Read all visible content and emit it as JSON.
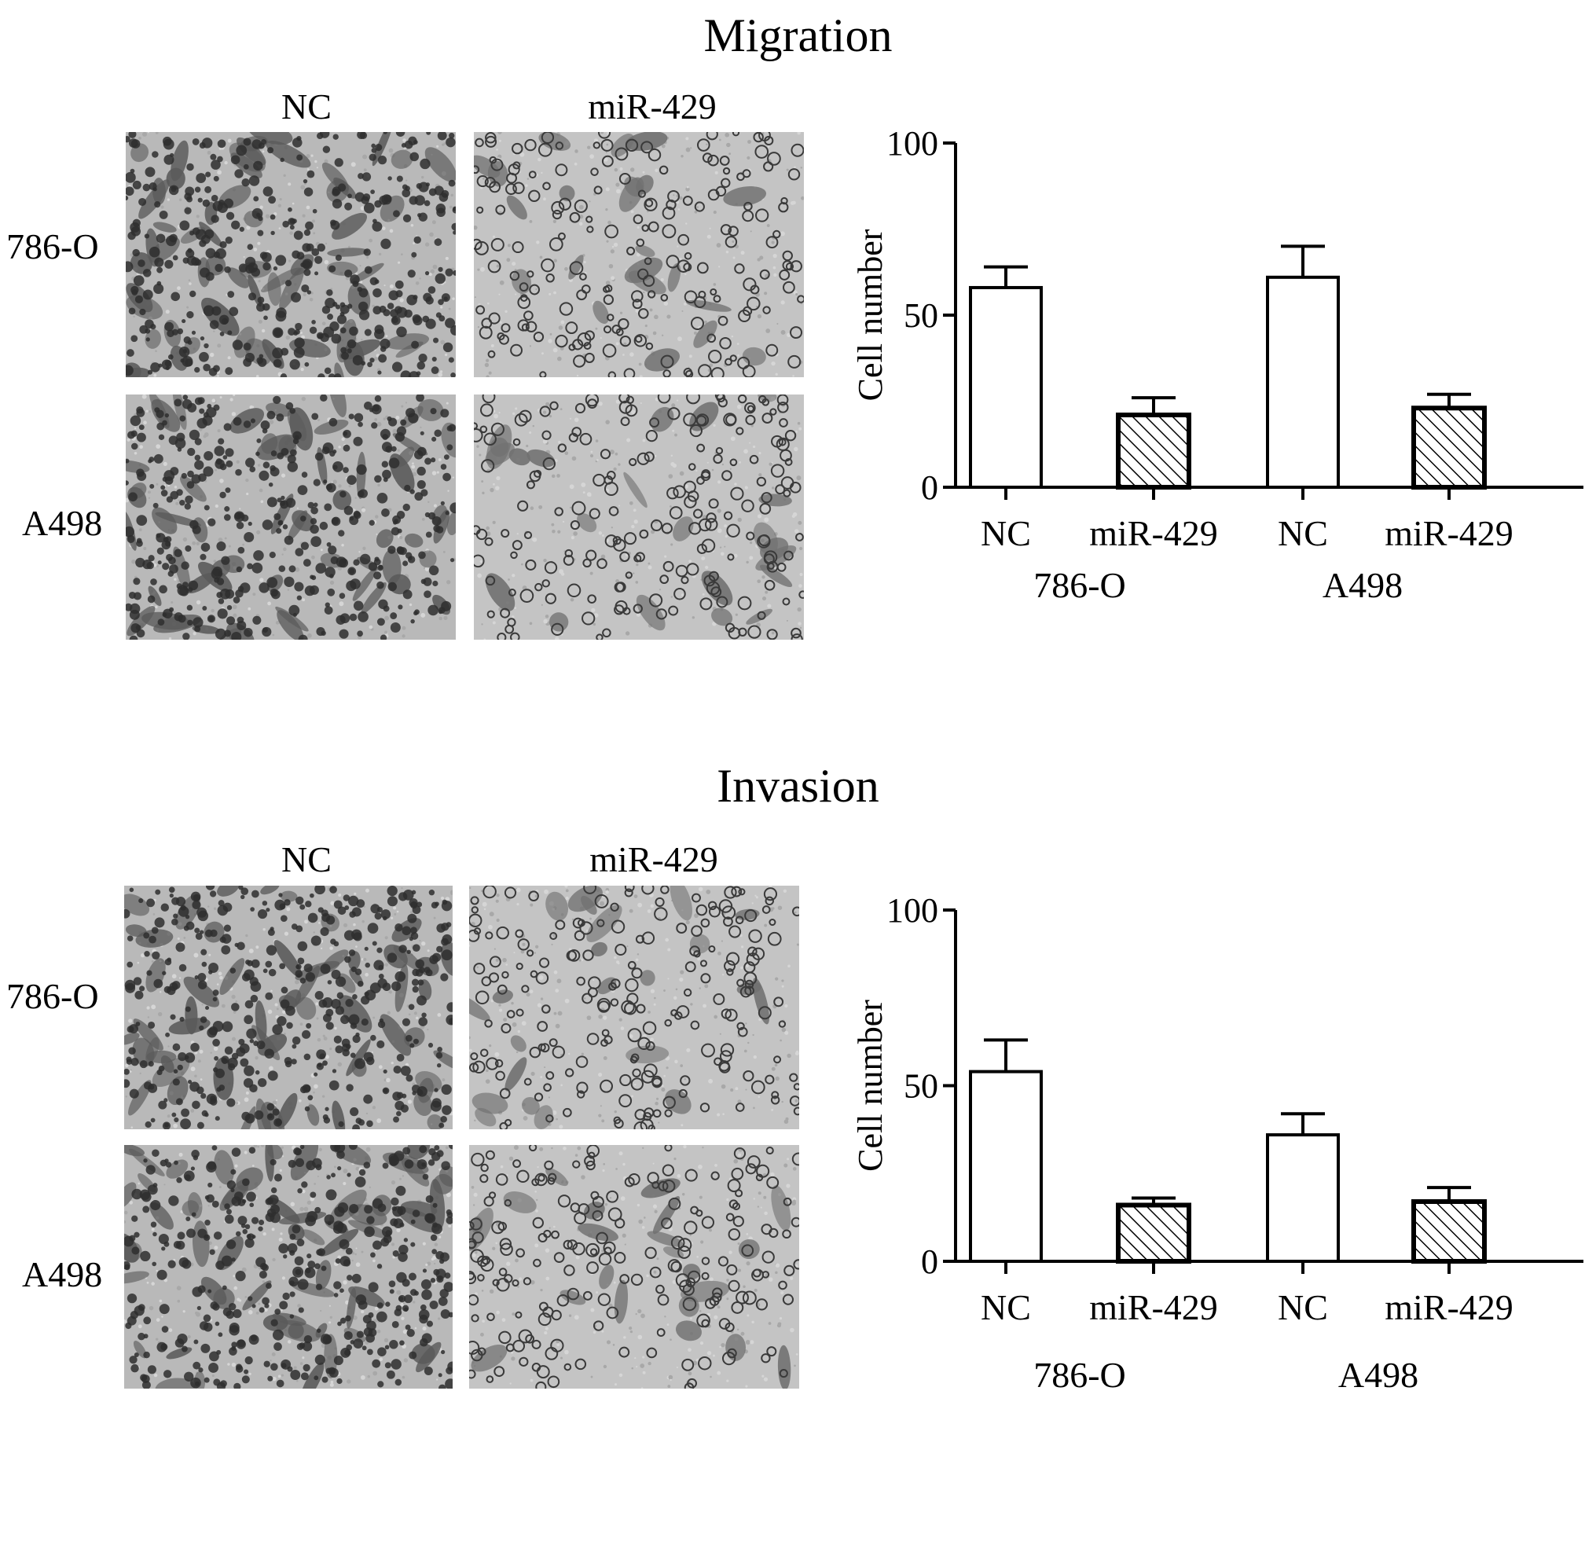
{
  "panels": [
    {
      "title": "Migration",
      "micrographs": {
        "columns": [
          "NC",
          "miR-429"
        ],
        "rows": [
          "786-O",
          "A498"
        ]
      }
    },
    {
      "title": "Invasion",
      "micrographs": {
        "columns": [
          "NC",
          "miR-429"
        ],
        "rows": [
          "786-O",
          "A498"
        ]
      }
    }
  ],
  "chart_data": [
    {
      "type": "bar",
      "categories": [
        "NC",
        "miR-429",
        "NC",
        "miR-429"
      ],
      "groups": [
        "786-O",
        "786-O",
        "A498",
        "A498"
      ],
      "group_labels": [
        "786-O",
        "A498"
      ],
      "values": [
        58,
        21,
        61,
        23
      ],
      "errors": [
        6,
        5,
        9,
        4
      ],
      "fills": [
        "open",
        "hatched",
        "open",
        "hatched"
      ],
      "title": "",
      "xlabel": "",
      "ylabel": "Cell number",
      "ylim": [
        0,
        100
      ],
      "yticks": [
        0,
        50,
        100
      ],
      "grid": false
    },
    {
      "type": "bar",
      "categories": [
        "NC",
        "miR-429",
        "NC",
        "miR-429"
      ],
      "groups": [
        "786-O",
        "786-O",
        "A498",
        "A498"
      ],
      "group_labels": [
        "786-O",
        "A498"
      ],
      "values": [
        54,
        16,
        36,
        17
      ],
      "errors": [
        9,
        2,
        6,
        4
      ],
      "fills": [
        "open",
        "hatched",
        "open",
        "hatched"
      ],
      "title": "",
      "xlabel": "",
      "ylabel": "Cell number",
      "ylim": [
        0,
        100
      ],
      "yticks": [
        0,
        50,
        100
      ],
      "grid": false
    }
  ]
}
